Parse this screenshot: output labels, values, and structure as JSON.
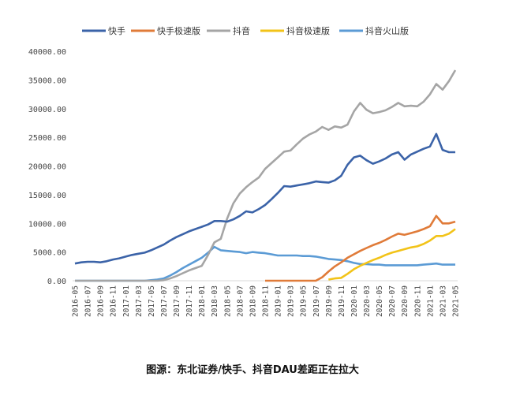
{
  "chart_data": {
    "type": "line",
    "title": "",
    "xlabel": "",
    "ylabel": "",
    "ylim": [
      0,
      40000
    ],
    "y_ticks": [
      "0.00",
      "5000.00",
      "10000.00",
      "15000.00",
      "20000.00",
      "25000.00",
      "30000.00",
      "35000.00",
      "40000.00"
    ],
    "y_tick_values": [
      0,
      5000,
      10000,
      15000,
      20000,
      25000,
      30000,
      35000,
      40000
    ],
    "x_tick_labels": [
      "2016-05",
      "2016-07",
      "2016-09",
      "2016-11",
      "2017-01",
      "2017-03",
      "2017-05",
      "2017-07",
      "2017-09",
      "2017-11",
      "2018-01",
      "2018-03",
      "2018-05",
      "2018-07",
      "2018-09",
      "2018-11",
      "2019-01",
      "2019-03",
      "2019-05",
      "2019-07",
      "2019-09",
      "2019-11",
      "2020-01",
      "2020-03",
      "2020-05",
      "2020-07",
      "2020-09",
      "2020-11",
      "2021-01",
      "2021-03",
      "2021-05"
    ],
    "x_start": "2016-05",
    "x_step": "monthly",
    "grid": false,
    "legend_position": "top-center",
    "series": [
      {
        "name": "快手",
        "color": "#3b63a8",
        "values": [
          3000,
          3200,
          3300,
          3300,
          3200,
          3400,
          3700,
          3900,
          4200,
          4500,
          4700,
          4900,
          5300,
          5800,
          6300,
          7000,
          7600,
          8100,
          8600,
          9000,
          9400,
          9800,
          10400,
          10400,
          10300,
          10700,
          11300,
          12100,
          11900,
          12500,
          13200,
          14200,
          15300,
          16500,
          16400,
          16600,
          16800,
          17000,
          17300,
          17200,
          17100,
          17500,
          18300,
          20200,
          21500,
          21800,
          21000,
          20400,
          20800,
          21300,
          22000,
          22400,
          21100,
          22000,
          22500,
          23000,
          23400,
          25600,
          22800,
          22400,
          22400
        ]
      },
      {
        "name": "快手极速版",
        "color": "#e07b39",
        "values": [
          null,
          null,
          null,
          null,
          null,
          null,
          null,
          null,
          null,
          null,
          null,
          null,
          null,
          null,
          null,
          null,
          null,
          null,
          null,
          null,
          null,
          null,
          null,
          null,
          null,
          null,
          null,
          null,
          null,
          null,
          0,
          0,
          0,
          0,
          0,
          0,
          0,
          0,
          0,
          600,
          1600,
          2500,
          3200,
          4000,
          4600,
          5200,
          5700,
          6200,
          6600,
          7100,
          7700,
          8200,
          8000,
          8300,
          8600,
          9000,
          9500,
          11300,
          10000,
          10000,
          10300
        ]
      },
      {
        "name": "抖音",
        "color": "#a5a5a5",
        "values": [
          0,
          0,
          0,
          0,
          0,
          0,
          0,
          0,
          0,
          0,
          0,
          0,
          0,
          0,
          100,
          400,
          800,
          1300,
          1800,
          2200,
          2600,
          4500,
          6700,
          7300,
          10800,
          13500,
          15200,
          16300,
          17200,
          18000,
          19500,
          20500,
          21500,
          22500,
          22700,
          23800,
          24800,
          25500,
          26000,
          26800,
          26300,
          26900,
          26700,
          27200,
          29500,
          31000,
          29800,
          29200,
          29400,
          29700,
          30300,
          31000,
          30400,
          30500,
          30400,
          31200,
          32500,
          34300,
          33300,
          34800,
          36700
        ]
      },
      {
        "name": "抖音极速版",
        "color": "#f2c318",
        "values": [
          null,
          null,
          null,
          null,
          null,
          null,
          null,
          null,
          null,
          null,
          null,
          null,
          null,
          null,
          null,
          null,
          null,
          null,
          null,
          null,
          null,
          null,
          null,
          null,
          null,
          null,
          null,
          null,
          null,
          null,
          null,
          null,
          null,
          null,
          null,
          null,
          null,
          null,
          null,
          null,
          200,
          400,
          500,
          1200,
          2000,
          2600,
          3100,
          3600,
          4000,
          4500,
          4900,
          5200,
          5500,
          5800,
          6000,
          6400,
          7000,
          7800,
          7800,
          8200,
          9000
        ]
      },
      {
        "name": "抖音火山版",
        "color": "#5b9bd5",
        "values": [
          0,
          0,
          0,
          0,
          0,
          0,
          0,
          0,
          0,
          0,
          0,
          0,
          100,
          200,
          400,
          900,
          1500,
          2200,
          2800,
          3400,
          4000,
          4900,
          5900,
          5300,
          5200,
          5100,
          5000,
          4800,
          5000,
          4900,
          4800,
          4600,
          4400,
          4400,
          4400,
          4400,
          4300,
          4300,
          4200,
          4000,
          3800,
          3700,
          3600,
          3400,
          3100,
          2900,
          2900,
          2800,
          2800,
          2700,
          2700,
          2700,
          2700,
          2700,
          2700,
          2800,
          2900,
          3000,
          2800,
          2800,
          2800
        ]
      }
    ]
  },
  "caption": "图源：东北证券/快手、抖音DAU差距正在拉大"
}
